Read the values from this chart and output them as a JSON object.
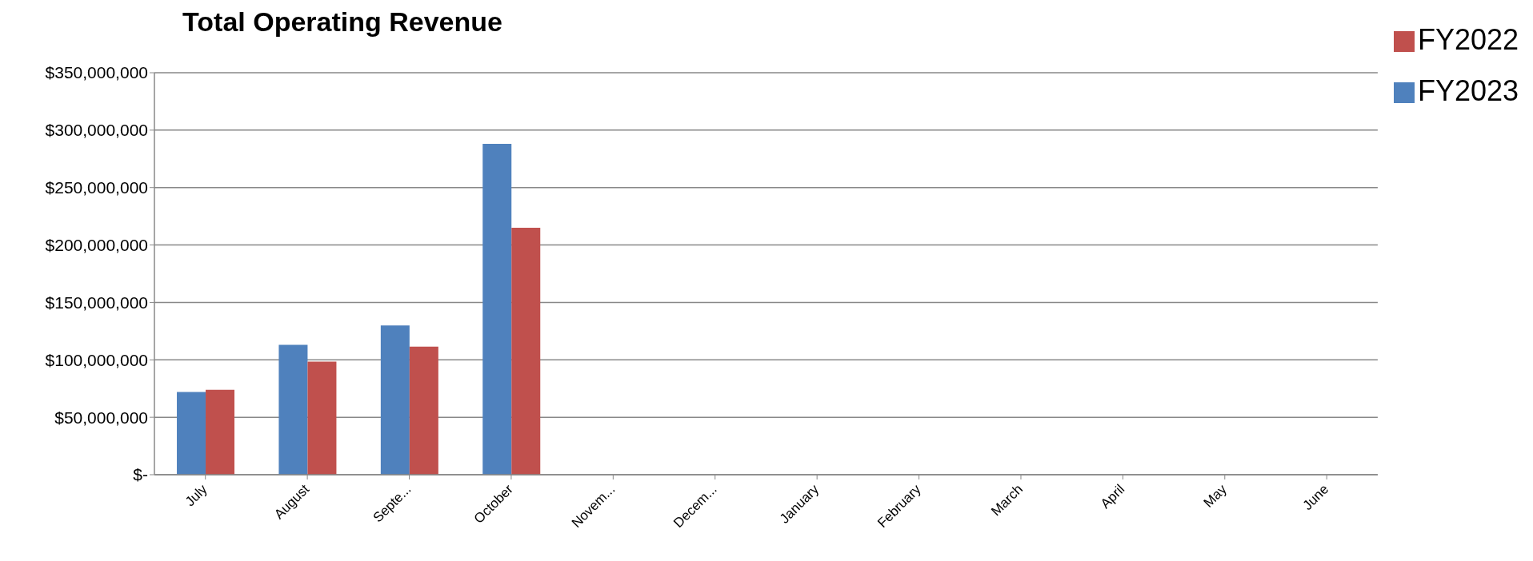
{
  "chart_data": {
    "type": "bar",
    "title": "Total Operating Revenue",
    "categories": [
      "July",
      "August",
      "Septe...",
      "October",
      "Novem...",
      "Decem...",
      "January",
      "February",
      "March",
      "April",
      "May",
      "June"
    ],
    "series": [
      {
        "name": "FY2023",
        "color": "#4f81bd",
        "values": [
          72000000,
          113000000,
          130000000,
          288000000,
          null,
          null,
          null,
          null,
          null,
          null,
          null,
          null
        ]
      },
      {
        "name": "FY2022",
        "color": "#c0504d",
        "values": [
          74000000,
          98500000,
          111500000,
          215000000,
          null,
          null,
          null,
          null,
          null,
          null,
          null,
          null
        ]
      }
    ],
    "ylim": [
      0,
      350000000
    ],
    "yticks": [
      {
        "value": 0,
        "label": "$-"
      },
      {
        "value": 50000000,
        "label": "$50,000,000"
      },
      {
        "value": 100000000,
        "label": "$100,000,000"
      },
      {
        "value": 150000000,
        "label": "$150,000,000"
      },
      {
        "value": 200000000,
        "label": "$200,000,000"
      },
      {
        "value": 250000000,
        "label": "$250,000,000"
      },
      {
        "value": 300000000,
        "label": "$300,000,000"
      },
      {
        "value": 350000000,
        "label": "$350,000,000"
      }
    ],
    "grid": "y",
    "legend": "top right"
  }
}
